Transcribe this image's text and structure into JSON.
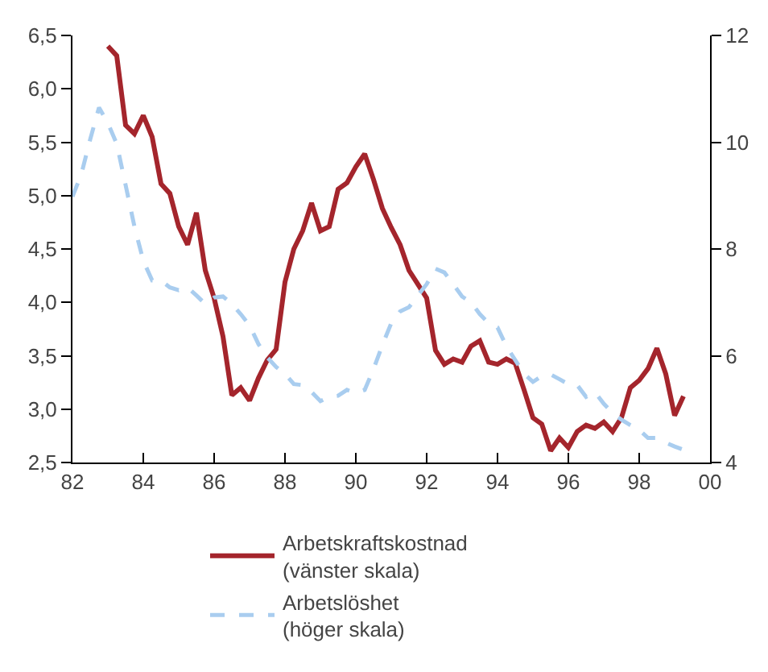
{
  "chart_data": {
    "type": "line",
    "xlim": [
      1982,
      2000
    ],
    "xticks": [
      {
        "value": 1982,
        "label": "82"
      },
      {
        "value": 1984,
        "label": "84"
      },
      {
        "value": 1986,
        "label": "86"
      },
      {
        "value": 1988,
        "label": "88"
      },
      {
        "value": 1990,
        "label": "90"
      },
      {
        "value": 1992,
        "label": "92"
      },
      {
        "value": 1994,
        "label": "94"
      },
      {
        "value": 1996,
        "label": "96"
      },
      {
        "value": 1998,
        "label": "98"
      },
      {
        "value": 2000,
        "label": "00"
      }
    ],
    "ylim": [
      2.5,
      6.5
    ],
    "yticks": [
      {
        "value": 2.5,
        "label": "2,5"
      },
      {
        "value": 3.0,
        "label": "3,0"
      },
      {
        "value": 3.5,
        "label": "3,5"
      },
      {
        "value": 4.0,
        "label": "4,0"
      },
      {
        "value": 4.5,
        "label": "4,5"
      },
      {
        "value": 5.0,
        "label": "5,0"
      },
      {
        "value": 5.5,
        "label": "5,5"
      },
      {
        "value": 6.0,
        "label": "6,0"
      },
      {
        "value": 6.5,
        "label": "6,5"
      }
    ],
    "y2lim": [
      4,
      12
    ],
    "y2ticks": [
      4,
      6,
      8,
      10,
      12
    ],
    "legend": "bottom",
    "series": [
      {
        "name": "Arbetskraftskostnad\n(vänster skala)",
        "color": "#a4252c",
        "line_style": "solid",
        "x": [
          1983,
          1983.25,
          1983.5,
          1983.75,
          1984,
          1984.25,
          1984.5,
          1984.75,
          1985,
          1985.25,
          1985.5,
          1985.75,
          1986,
          1986.25,
          1986.5,
          1986.75,
          1987,
          1987.25,
          1987.5,
          1987.75,
          1988,
          1988.25,
          1988.5,
          1988.75,
          1989,
          1989.25,
          1989.5,
          1989.75,
          1990,
          1990.25,
          1990.5,
          1990.75,
          1991,
          1991.25,
          1991.5,
          1991.75,
          1992,
          1992.25,
          1992.5,
          1992.75,
          1993,
          1993.25,
          1993.5,
          1993.75,
          1994,
          1994.25,
          1994.5,
          1994.75,
          1995,
          1995.25,
          1995.5,
          1995.75,
          1996,
          1996.25,
          1996.5,
          1996.75,
          1997,
          1997.25,
          1997.5,
          1997.75,
          1998,
          1998.25,
          1998.5,
          1998.75,
          1999,
          1999.25
        ],
        "values": [
          6.4,
          6.31,
          5.66,
          5.58,
          5.75,
          5.55,
          5.11,
          5.02,
          4.71,
          4.54,
          4.84,
          4.3,
          4.04,
          3.68,
          3.13,
          3.2,
          3.08,
          3.29,
          3.46,
          3.56,
          4.19,
          4.5,
          4.67,
          4.93,
          4.67,
          4.71,
          5.06,
          5.12,
          5.27,
          5.39,
          5.15,
          4.88,
          4.7,
          4.54,
          4.3,
          4.17,
          4.04,
          3.55,
          3.42,
          3.47,
          3.44,
          3.59,
          3.64,
          3.44,
          3.42,
          3.47,
          3.43,
          3.18,
          2.92,
          2.86,
          2.61,
          2.73,
          2.64,
          2.79,
          2.85,
          2.82,
          2.88,
          2.79,
          2.92,
          3.2,
          3.27,
          3.38,
          3.57,
          3.33,
          2.94,
          3.12
        ]
      },
      {
        "name": "Arbetslöshet\n(höger skala)",
        "color": "#a9cdef",
        "line_style": "dashed",
        "axis": "y2",
        "x": [
          1982,
          1982.25,
          1982.5,
          1982.75,
          1983,
          1983.25,
          1983.5,
          1983.75,
          1984,
          1984.25,
          1984.5,
          1984.75,
          1985,
          1985.25,
          1985.5,
          1985.75,
          1986,
          1986.25,
          1986.5,
          1986.75,
          1987,
          1987.25,
          1987.5,
          1987.75,
          1988,
          1988.25,
          1988.5,
          1988.75,
          1989,
          1989.25,
          1989.5,
          1989.75,
          1990,
          1990.25,
          1990.5,
          1990.75,
          1991,
          1991.25,
          1991.5,
          1991.75,
          1992,
          1992.25,
          1992.5,
          1992.75,
          1993,
          1993.25,
          1993.5,
          1993.75,
          1994,
          1994.25,
          1994.5,
          1994.75,
          1995,
          1995.25,
          1995.5,
          1995.75,
          1996,
          1996.25,
          1996.5,
          1996.75,
          1997,
          1997.25,
          1997.5,
          1997.75,
          1998,
          1998.25,
          1998.5,
          1998.75,
          1999,
          1999.25
        ],
        "values": [
          8.98,
          9.4,
          10.05,
          10.65,
          10.36,
          9.97,
          9.2,
          8.42,
          7.78,
          7.41,
          7.41,
          7.28,
          7.23,
          7.28,
          7.13,
          6.97,
          7.09,
          7.11,
          6.97,
          6.78,
          6.57,
          6.22,
          5.97,
          5.79,
          5.66,
          5.47,
          5.45,
          5.32,
          5.15,
          5.23,
          5.25,
          5.36,
          5.3,
          5.36,
          5.75,
          6.2,
          6.61,
          6.83,
          6.91,
          7.13,
          7.34,
          7.63,
          7.56,
          7.34,
          7.11,
          7.0,
          6.78,
          6.61,
          6.53,
          6.18,
          5.92,
          5.66,
          5.51,
          5.62,
          5.65,
          5.56,
          5.47,
          5.45,
          5.23,
          5.32,
          5.1,
          4.93,
          4.8,
          4.7,
          4.61,
          4.46,
          4.46,
          4.37,
          4.3,
          4.24
        ]
      }
    ]
  }
}
